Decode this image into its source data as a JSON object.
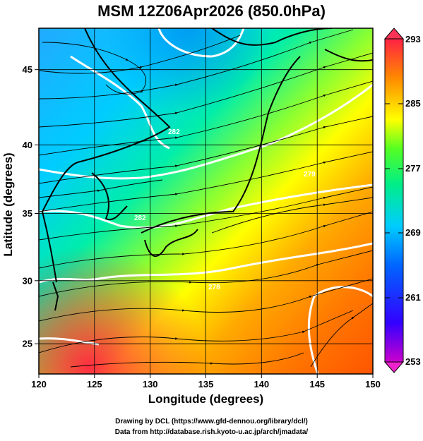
{
  "title": "MSM 12Z06Apr2026 (850.0hPa)",
  "xlabel": "Longitude (degrees)",
  "ylabel": "Latitude  (degrees)",
  "credits": [
    "Drawing by DCL (https://www.gfd-dennou.org/library/dcl/)",
    "Data from http://database.rish.kyoto-u.ac.jp/arch/jmadata/"
  ],
  "map": {
    "lon_range": [
      120,
      150
    ],
    "lat_range": [
      22.4,
      47.6
    ],
    "lon_ticks": [
      "120",
      "125",
      "130",
      "135",
      "140",
      "145",
      "150"
    ],
    "lat_ticks": [
      "25",
      "30",
      "35",
      "40",
      "45"
    ],
    "contour_labels": [
      "282",
      "282",
      "279",
      "278"
    ]
  },
  "colorbar": {
    "min": 253,
    "max": 293,
    "tick_labels": [
      "293",
      "285",
      "277",
      "269",
      "261",
      "253"
    ],
    "colors": [
      "#cc00cc",
      "#3300ff",
      "#0099ff",
      "#00ffee",
      "#33ff55",
      "#ffff00",
      "#ff8800",
      "#ff2244"
    ]
  }
}
